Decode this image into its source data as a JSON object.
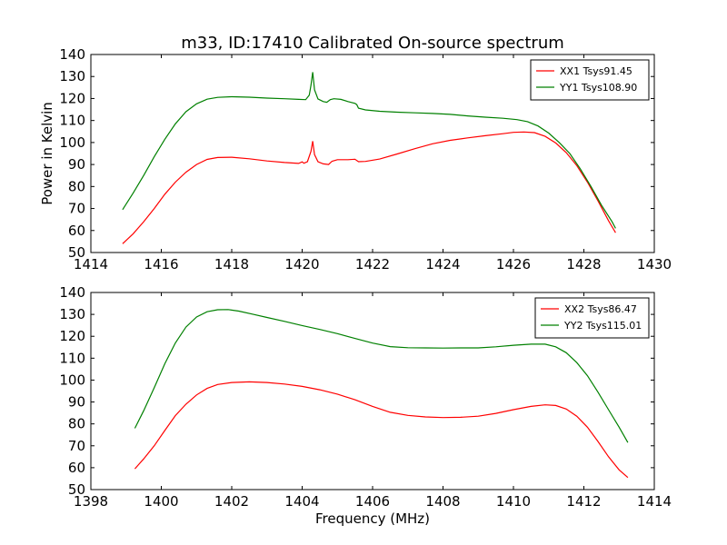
{
  "chart_data": [
    {
      "type": "line",
      "title": "m33, ID:17410 Calibrated On-source spectrum",
      "xlabel": "",
      "ylabel": "Power in Kelvin",
      "xlim": [
        1414,
        1430
      ],
      "ylim": [
        50,
        140
      ],
      "xticks": [
        1414,
        1416,
        1418,
        1420,
        1422,
        1424,
        1426,
        1428,
        1430
      ],
      "yticks": [
        50,
        60,
        70,
        80,
        90,
        100,
        110,
        120,
        130,
        140
      ],
      "grid": false,
      "legend_position": "top-right",
      "series": [
        {
          "name": "XX1 Tsys91.45",
          "color": "#ff0000",
          "points": [
            [
              1414.9,
              54
            ],
            [
              1415.2,
              58.5
            ],
            [
              1415.5,
              64
            ],
            [
              1415.8,
              70
            ],
            [
              1416.1,
              76.5
            ],
            [
              1416.4,
              82
            ],
            [
              1416.7,
              86.5
            ],
            [
              1417.0,
              90
            ],
            [
              1417.3,
              92.3
            ],
            [
              1417.6,
              93.2
            ],
            [
              1418.0,
              93.3
            ],
            [
              1418.5,
              92.6
            ],
            [
              1419.0,
              91.6
            ],
            [
              1419.5,
              90.9
            ],
            [
              1419.9,
              90.5
            ],
            [
              1420.0,
              91.2
            ],
            [
              1420.05,
              90.6
            ],
            [
              1420.15,
              91.3
            ],
            [
              1420.25,
              96
            ],
            [
              1420.3,
              100.6
            ],
            [
              1420.35,
              94.5
            ],
            [
              1420.45,
              91.3
            ],
            [
              1420.6,
              90.3
            ],
            [
              1420.75,
              90
            ],
            [
              1420.85,
              91.5
            ],
            [
              1421.0,
              92.2
            ],
            [
              1421.3,
              92.2
            ],
            [
              1421.5,
              92.4
            ],
            [
              1421.6,
              91.3
            ],
            [
              1421.8,
              91.4
            ],
            [
              1422.2,
              92.5
            ],
            [
              1422.7,
              94.8
            ],
            [
              1423.2,
              97.2
            ],
            [
              1423.7,
              99.4
            ],
            [
              1424.2,
              101
            ],
            [
              1424.7,
              102.1
            ],
            [
              1425.2,
              103.1
            ],
            [
              1425.7,
              104
            ],
            [
              1426.0,
              104.6
            ],
            [
              1426.3,
              104.8
            ],
            [
              1426.6,
              104.5
            ],
            [
              1426.9,
              102.8
            ],
            [
              1427.2,
              99.8
            ],
            [
              1427.5,
              95.4
            ],
            [
              1427.8,
              89.5
            ],
            [
              1428.1,
              82
            ],
            [
              1428.4,
              73.5
            ],
            [
              1428.7,
              64.5
            ],
            [
              1428.9,
              59
            ]
          ]
        },
        {
          "name": "YY1 Tsys108.90",
          "color": "#008000",
          "points": [
            [
              1414.9,
              69.5
            ],
            [
              1415.2,
              77
            ],
            [
              1415.5,
              85
            ],
            [
              1415.8,
              93.5
            ],
            [
              1416.1,
              101.5
            ],
            [
              1416.4,
              108.5
            ],
            [
              1416.7,
              114
            ],
            [
              1417.0,
              117.6
            ],
            [
              1417.3,
              119.7
            ],
            [
              1417.6,
              120.5
            ],
            [
              1418.0,
              120.8
            ],
            [
              1418.5,
              120.6
            ],
            [
              1419.0,
              120.2
            ],
            [
              1419.5,
              119.9
            ],
            [
              1419.9,
              119.6
            ],
            [
              1420.1,
              119.5
            ],
            [
              1420.2,
              121.5
            ],
            [
              1420.25,
              126
            ],
            [
              1420.3,
              132
            ],
            [
              1420.35,
              124
            ],
            [
              1420.45,
              119.8
            ],
            [
              1420.6,
              118.6
            ],
            [
              1420.7,
              118.3
            ],
            [
              1420.8,
              119.5
            ],
            [
              1420.9,
              119.9
            ],
            [
              1421.1,
              119.6
            ],
            [
              1421.3,
              118.6
            ],
            [
              1421.5,
              117.8
            ],
            [
              1421.55,
              117.2
            ],
            [
              1421.6,
              115.6
            ],
            [
              1421.8,
              114.8
            ],
            [
              1422.2,
              114.2
            ],
            [
              1422.7,
              113.8
            ],
            [
              1423.2,
              113.5
            ],
            [
              1423.7,
              113.2
            ],
            [
              1424.2,
              112.8
            ],
            [
              1424.7,
              112.1
            ],
            [
              1425.2,
              111.5
            ],
            [
              1425.7,
              111
            ],
            [
              1426.1,
              110.4
            ],
            [
              1426.4,
              109.5
            ],
            [
              1426.7,
              107.5
            ],
            [
              1427.0,
              104.3
            ],
            [
              1427.3,
              100
            ],
            [
              1427.6,
              95
            ],
            [
              1427.9,
              88
            ],
            [
              1428.2,
              80
            ],
            [
              1428.5,
              71.5
            ],
            [
              1428.8,
              64
            ],
            [
              1428.9,
              61
            ]
          ]
        }
      ]
    },
    {
      "type": "line",
      "title": "",
      "xlabel": "Frequency (MHz)",
      "ylabel": "",
      "xlim": [
        1398,
        1414
      ],
      "ylim": [
        50,
        140
      ],
      "xticks": [
        1398,
        1400,
        1402,
        1404,
        1406,
        1408,
        1410,
        1412,
        1414
      ],
      "yticks": [
        50,
        60,
        70,
        80,
        90,
        100,
        110,
        120,
        130,
        140
      ],
      "grid": false,
      "legend_position": "top-right",
      "series": [
        {
          "name": "XX2 Tsys86.47",
          "color": "#ff0000",
          "points": [
            [
              1399.25,
              59.5
            ],
            [
              1399.5,
              64
            ],
            [
              1399.8,
              70
            ],
            [
              1400.1,
              77
            ],
            [
              1400.4,
              83.8
            ],
            [
              1400.7,
              89
            ],
            [
              1401.0,
              93.2
            ],
            [
              1401.3,
              96.2
            ],
            [
              1401.6,
              98
            ],
            [
              1402.0,
              98.9
            ],
            [
              1402.5,
              99.2
            ],
            [
              1403.0,
              98.9
            ],
            [
              1403.5,
              98.2
            ],
            [
              1404.0,
              97.1
            ],
            [
              1404.5,
              95.6
            ],
            [
              1405.0,
              93.6
            ],
            [
              1405.5,
              91
            ],
            [
              1406.0,
              88
            ],
            [
              1406.5,
              85.3
            ],
            [
              1407.0,
              83.9
            ],
            [
              1407.5,
              83.2
            ],
            [
              1408.0,
              82.9
            ],
            [
              1408.5,
              83
            ],
            [
              1409.0,
              83.5
            ],
            [
              1409.5,
              84.8
            ],
            [
              1410.0,
              86.5
            ],
            [
              1410.5,
              88
            ],
            [
              1410.9,
              88.7
            ],
            [
              1411.2,
              88.4
            ],
            [
              1411.5,
              86.8
            ],
            [
              1411.8,
              83.5
            ],
            [
              1412.1,
              78.5
            ],
            [
              1412.4,
              72
            ],
            [
              1412.7,
              65
            ],
            [
              1413.0,
              59
            ],
            [
              1413.25,
              55.5
            ]
          ]
        },
        {
          "name": "YY2 Tsys115.01",
          "color": "#008000",
          "points": [
            [
              1399.25,
              78
            ],
            [
              1399.5,
              86
            ],
            [
              1399.8,
              96.5
            ],
            [
              1400.1,
              107.5
            ],
            [
              1400.4,
              117
            ],
            [
              1400.7,
              124.2
            ],
            [
              1401.0,
              128.8
            ],
            [
              1401.3,
              131.2
            ],
            [
              1401.6,
              132.1
            ],
            [
              1401.9,
              132.2
            ],
            [
              1402.2,
              131.5
            ],
            [
              1402.6,
              130.1
            ],
            [
              1403.0,
              128.6
            ],
            [
              1403.5,
              126.8
            ],
            [
              1404.0,
              124.9
            ],
            [
              1404.5,
              123.1
            ],
            [
              1405.0,
              121.2
            ],
            [
              1405.5,
              119
            ],
            [
              1406.0,
              116.9
            ],
            [
              1406.5,
              115.3
            ],
            [
              1407.0,
              114.8
            ],
            [
              1407.5,
              114.7
            ],
            [
              1408.0,
              114.6
            ],
            [
              1408.5,
              114.7
            ],
            [
              1409.0,
              114.7
            ],
            [
              1409.5,
              115.2
            ],
            [
              1410.0,
              115.9
            ],
            [
              1410.5,
              116.4
            ],
            [
              1410.9,
              116.4
            ],
            [
              1411.2,
              115.2
            ],
            [
              1411.5,
              112.5
            ],
            [
              1411.8,
              108
            ],
            [
              1412.1,
              102
            ],
            [
              1412.4,
              94.5
            ],
            [
              1412.7,
              86.5
            ],
            [
              1413.0,
              78.5
            ],
            [
              1413.25,
              71.5
            ]
          ]
        }
      ]
    }
  ]
}
